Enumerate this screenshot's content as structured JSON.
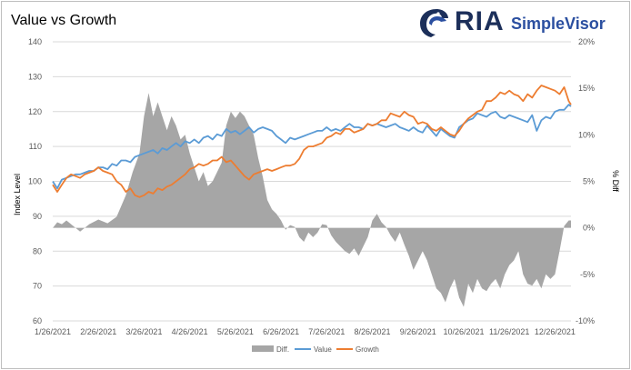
{
  "chart_data": {
    "type": "line",
    "title": "Value vs Growth",
    "y_left_label": "Index Level",
    "y_right_label": "% Diff",
    "ylim_left": [
      60,
      140
    ],
    "ylim_right": [
      -10,
      20
    ],
    "y_left_ticks": [
      "60",
      "70",
      "80",
      "90",
      "100",
      "110",
      "120",
      "130",
      "140"
    ],
    "y_right_ticks": [
      "-10%",
      "-5%",
      "0%",
      "5%",
      "10%",
      "15%",
      "20%"
    ],
    "x_tick_labels": [
      "1/26/2021",
      "2/26/2021",
      "3/26/2021",
      "4/26/2021",
      "5/26/2021",
      "6/26/2021",
      "7/26/2021",
      "8/26/2021",
      "9/26/2021",
      "10/26/2021",
      "11/26/2021",
      "12/26/2021"
    ],
    "colors": {
      "diff": "#a6a6a6",
      "value": "#5b9bd5",
      "growth": "#ed7d31"
    },
    "legend": [
      "Diff.",
      "Value",
      "Growth"
    ],
    "x_range": [
      0,
      11.35
    ],
    "series": [
      {
        "name": "Diff.",
        "axis": "right",
        "kind": "area",
        "x": [
          0,
          0.1,
          0.2,
          0.3,
          0.45,
          0.6,
          0.8,
          1.0,
          1.2,
          1.4,
          1.6,
          1.75,
          1.9,
          2.0,
          2.1,
          2.2,
          2.3,
          2.4,
          2.5,
          2.6,
          2.7,
          2.8,
          2.9,
          3.0,
          3.1,
          3.2,
          3.3,
          3.4,
          3.5,
          3.6,
          3.7,
          3.8,
          3.9,
          4.0,
          4.1,
          4.2,
          4.3,
          4.4,
          4.5,
          4.6,
          4.7,
          4.8,
          4.9,
          5.0,
          5.1,
          5.2,
          5.3,
          5.4,
          5.5,
          5.6,
          5.7,
          5.8,
          5.9,
          6.0,
          6.1,
          6.2,
          6.3,
          6.4,
          6.5,
          6.6,
          6.7,
          6.8,
          6.9,
          7.0,
          7.1,
          7.2,
          7.3,
          7.4,
          7.5,
          7.6,
          7.7,
          7.8,
          7.9,
          8.0,
          8.1,
          8.2,
          8.3,
          8.4,
          8.5,
          8.6,
          8.7,
          8.8,
          8.9,
          9.0,
          9.1,
          9.2,
          9.3,
          9.4,
          9.5,
          9.6,
          9.7,
          9.8,
          9.9,
          10.0,
          10.1,
          10.2,
          10.3,
          10.4,
          10.5,
          10.6,
          10.7,
          10.8,
          10.9,
          11.0,
          11.1,
          11.2,
          11.3,
          11.35
        ],
        "values": [
          0,
          0.6,
          0.4,
          0.8,
          0.2,
          -0.4,
          0.4,
          0.9,
          0.5,
          1.2,
          3.5,
          6.0,
          8.0,
          12.0,
          14.5,
          12.0,
          13.5,
          12.0,
          10.5,
          12.0,
          11.0,
          9.5,
          10.0,
          8.0,
          6.5,
          5.0,
          6.0,
          4.5,
          5.0,
          6.0,
          7.0,
          11.0,
          12.5,
          11.8,
          12.5,
          12.0,
          11.0,
          10.0,
          7.5,
          5.5,
          3.0,
          2.0,
          1.5,
          0.8,
          -0.2,
          0.3,
          0.1,
          -1.0,
          -1.5,
          -0.5,
          -1.0,
          -0.5,
          0.4,
          0.3,
          -0.8,
          -1.5,
          -2.0,
          -2.5,
          -2.8,
          -2.2,
          -3.0,
          -2.0,
          -1.0,
          0.8,
          1.5,
          0.6,
          0.1,
          -0.8,
          -1.5,
          -0.5,
          -1.8,
          -3.0,
          -4.5,
          -3.5,
          -2.5,
          -3.5,
          -5.0,
          -6.5,
          -7.0,
          -8.0,
          -6.5,
          -5.5,
          -7.5,
          -8.5,
          -6.0,
          -7.0,
          -5.5,
          -6.5,
          -6.8,
          -6.0,
          -5.5,
          -6.5,
          -5.0,
          -4.0,
          -3.5,
          -2.5,
          -5.0,
          -6.0,
          -6.2,
          -5.5,
          -6.5,
          -5.0,
          -5.5,
          -5.0,
          -2.5,
          0.2,
          0.8,
          0.8
        ]
      },
      {
        "name": "Value",
        "axis": "left",
        "kind": "line",
        "x": [
          0,
          0.1,
          0.2,
          0.3,
          0.4,
          0.5,
          0.6,
          0.7,
          0.8,
          0.9,
          1.0,
          1.1,
          1.2,
          1.3,
          1.4,
          1.5,
          1.6,
          1.7,
          1.8,
          1.9,
          2.0,
          2.1,
          2.2,
          2.3,
          2.4,
          2.5,
          2.6,
          2.7,
          2.8,
          2.9,
          3.0,
          3.1,
          3.2,
          3.3,
          3.4,
          3.5,
          3.6,
          3.7,
          3.8,
          3.9,
          4.0,
          4.1,
          4.2,
          4.3,
          4.4,
          4.5,
          4.6,
          4.7,
          4.8,
          4.9,
          5.0,
          5.1,
          5.2,
          5.3,
          5.4,
          5.5,
          5.6,
          5.7,
          5.8,
          5.9,
          6.0,
          6.1,
          6.2,
          6.3,
          6.4,
          6.5,
          6.6,
          6.7,
          6.8,
          6.9,
          7.0,
          7.1,
          7.2,
          7.3,
          7.4,
          7.5,
          7.6,
          7.7,
          7.8,
          7.9,
          8.0,
          8.1,
          8.2,
          8.3,
          8.4,
          8.5,
          8.6,
          8.7,
          8.8,
          8.9,
          9.0,
          9.1,
          9.2,
          9.3,
          9.4,
          9.5,
          9.6,
          9.7,
          9.8,
          9.9,
          10.0,
          10.1,
          10.2,
          10.3,
          10.4,
          10.5,
          10.6,
          10.7,
          10.8,
          10.9,
          11.0,
          11.1,
          11.2,
          11.3,
          11.35
        ],
        "values": [
          100,
          98,
          100.5,
          101,
          101.5,
          102,
          102,
          102.5,
          103,
          103,
          104,
          104,
          103.5,
          105,
          104.5,
          106,
          106,
          105.5,
          107,
          107.5,
          108,
          108.5,
          109,
          108,
          109.5,
          109,
          110,
          111,
          110,
          111.5,
          111,
          112,
          111,
          112.5,
          113,
          112,
          113.5,
          113,
          115,
          114,
          114.5,
          113.5,
          114.5,
          115.5,
          114,
          115,
          115.5,
          115,
          114.5,
          113,
          112,
          111,
          112.5,
          112,
          112.5,
          113,
          113.5,
          114,
          114.5,
          114.5,
          115.5,
          114.5,
          115,
          114.5,
          115.5,
          116.5,
          115.5,
          115.5,
          115,
          116.5,
          116,
          116.5,
          116,
          115.5,
          116,
          116.5,
          115.5,
          115,
          114.5,
          115.5,
          114.5,
          114,
          116,
          114.5,
          113,
          115,
          114,
          113,
          112.5,
          115.5,
          116.5,
          117.5,
          118,
          119.5,
          119,
          118.5,
          119.5,
          120,
          118.5,
          118,
          119,
          118.5,
          118,
          117.5,
          117,
          119,
          114.5,
          117.5,
          118.5,
          118,
          120,
          120.5,
          120.5,
          122,
          121.5
        ]
      },
      {
        "name": "Growth",
        "axis": "left",
        "kind": "line",
        "x": [
          0,
          0.1,
          0.2,
          0.3,
          0.4,
          0.5,
          0.6,
          0.7,
          0.8,
          0.9,
          1.0,
          1.1,
          1.2,
          1.3,
          1.4,
          1.5,
          1.6,
          1.7,
          1.8,
          1.9,
          2.0,
          2.1,
          2.2,
          2.3,
          2.4,
          2.5,
          2.6,
          2.7,
          2.8,
          2.9,
          3.0,
          3.1,
          3.2,
          3.3,
          3.4,
          3.5,
          3.6,
          3.7,
          3.8,
          3.9,
          4.0,
          4.1,
          4.2,
          4.3,
          4.4,
          4.5,
          4.6,
          4.7,
          4.8,
          4.9,
          5.0,
          5.1,
          5.2,
          5.3,
          5.4,
          5.5,
          5.6,
          5.7,
          5.8,
          5.9,
          6.0,
          6.1,
          6.2,
          6.3,
          6.4,
          6.5,
          6.6,
          6.7,
          6.8,
          6.9,
          7.0,
          7.1,
          7.2,
          7.3,
          7.4,
          7.5,
          7.6,
          7.7,
          7.8,
          7.9,
          8.0,
          8.1,
          8.2,
          8.3,
          8.4,
          8.5,
          8.6,
          8.7,
          8.8,
          8.9,
          9.0,
          9.1,
          9.2,
          9.3,
          9.4,
          9.5,
          9.6,
          9.7,
          9.8,
          9.9,
          10.0,
          10.1,
          10.2,
          10.3,
          10.4,
          10.5,
          10.6,
          10.7,
          10.8,
          10.9,
          11.0,
          11.1,
          11.2,
          11.3,
          11.35
        ],
        "values": [
          99,
          97,
          99,
          101,
          102,
          101.5,
          101,
          102,
          102.5,
          103,
          104,
          103,
          102.5,
          102,
          100,
          99,
          97,
          98,
          96,
          95.5,
          96,
          97,
          96.5,
          98,
          97.5,
          98.5,
          99,
          100,
          101,
          102,
          103.5,
          104,
          105,
          104.5,
          105,
          106,
          106,
          107,
          105.5,
          106,
          104.5,
          103,
          101.5,
          100.5,
          102,
          102.5,
          103,
          103.5,
          103,
          103.5,
          104,
          104.5,
          104.5,
          105,
          106.5,
          109,
          110,
          110,
          110.5,
          111,
          112.5,
          113,
          114,
          113.5,
          115,
          115,
          114,
          114.5,
          115,
          116.5,
          116,
          116.5,
          117.5,
          117.5,
          119.5,
          119,
          118.5,
          120,
          119,
          118.5,
          116.5,
          117,
          116.5,
          115,
          114.5,
          115.5,
          114.5,
          113.5,
          113,
          114.5,
          116.5,
          118,
          119,
          120,
          120.5,
          123,
          123,
          124,
          125.5,
          125,
          126,
          125,
          124.5,
          123,
          125,
          124,
          126,
          127.5,
          127,
          126.5,
          126,
          125,
          127,
          123,
          122
        ]
      }
    ]
  }
}
